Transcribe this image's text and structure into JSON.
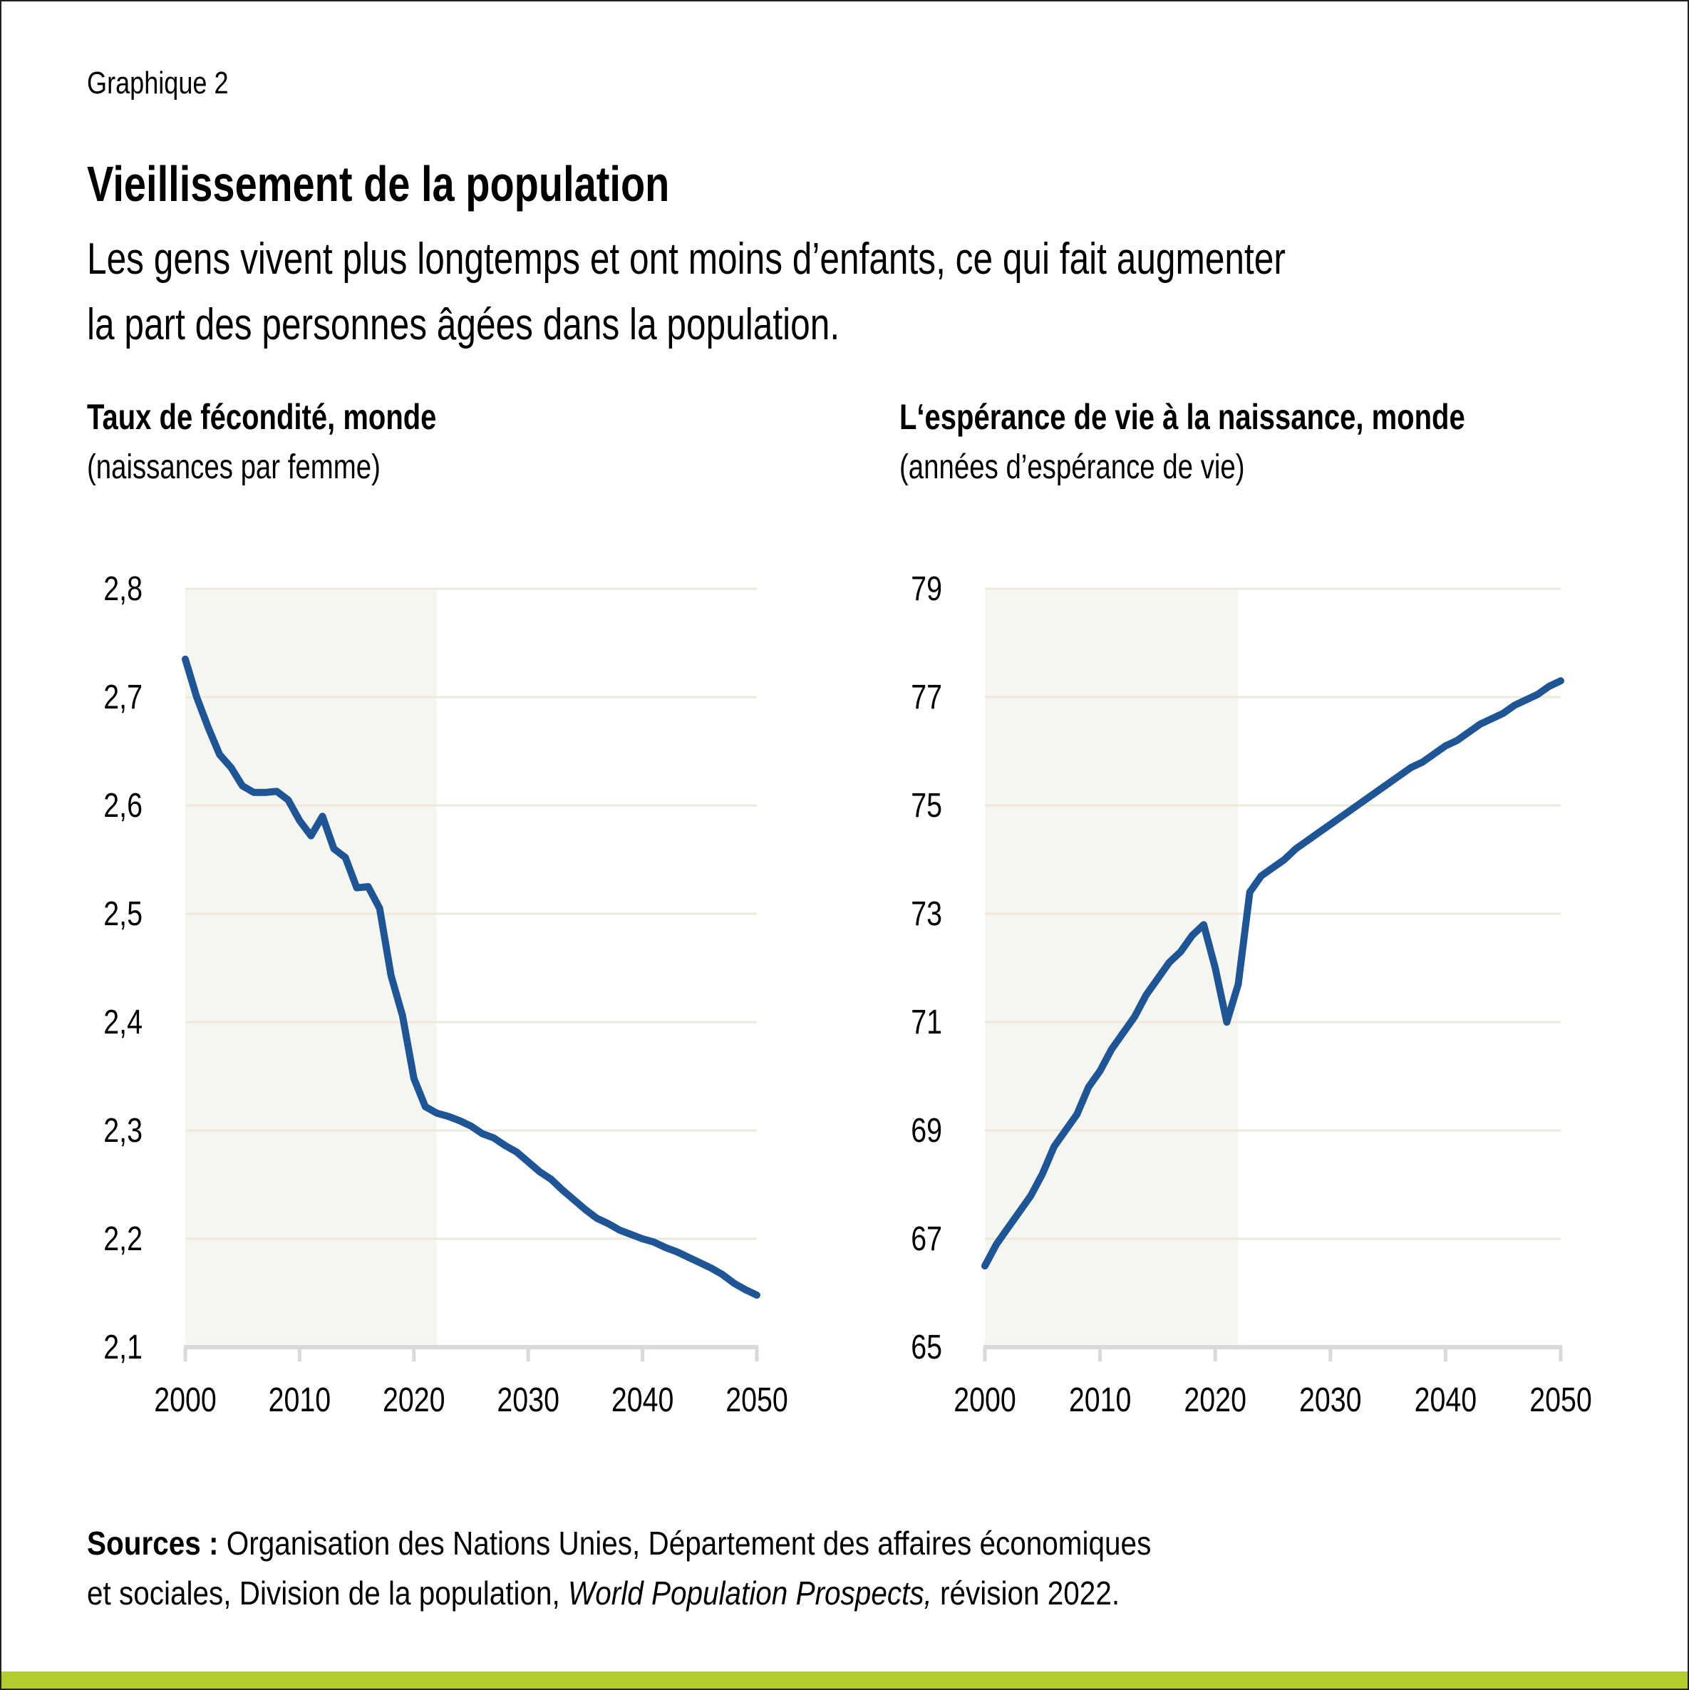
{
  "header": {
    "kicker": "Graphique 2",
    "title": "Vieillissement de la population",
    "subtitle_line1": "Les gens vivent plus longtemps et ont moins d’enfants, ce qui fait augmenter",
    "subtitle_line2": "la part des personnes âgées dans la population."
  },
  "colors": {
    "line": "#1f5594",
    "shade": "#f6f6f1",
    "grid": "#ede9dd",
    "axis": "#d9d9d9",
    "accent_bar": "#b3cd2d"
  },
  "footer": {
    "sources_label": "Sources :",
    "sources_text_1": " Organisation des Nations Unies, Département des affaires économiques",
    "sources_text_2a": "et sociales, Division de la population, ",
    "sources_text_2_italic": "World Population Prospects,",
    "sources_text_2b": " révision 2022."
  },
  "chart_data": [
    {
      "type": "line",
      "title": "Taux de fécondité, monde",
      "ylabel": "(naissances par femme)",
      "xlabel": "",
      "xlim": [
        2000,
        2050
      ],
      "ylim": [
        2.1,
        2.8
      ],
      "x_ticks": [
        "2000",
        "2010",
        "2020",
        "2030",
        "2040",
        "2050"
      ],
      "y_ticks": [
        "2,1",
        "2,2",
        "2,3",
        "2,4",
        "2,5",
        "2,6",
        "2,7",
        "2,8"
      ],
      "y_tick_values": [
        2.1,
        2.2,
        2.3,
        2.4,
        2.5,
        2.6,
        2.7,
        2.8
      ],
      "grid": true,
      "shaded_region": [
        2000,
        2022
      ],
      "series": [
        {
          "name": "Taux de fécondité",
          "x": [
            2000,
            2001,
            2002,
            2003,
            2004,
            2005,
            2006,
            2007,
            2008,
            2009,
            2010,
            2011,
            2012,
            2013,
            2014,
            2015,
            2016,
            2017,
            2018,
            2019,
            2020,
            2021,
            2022,
            2023,
            2024,
            2025,
            2026,
            2027,
            2028,
            2029,
            2030,
            2031,
            2032,
            2033,
            2034,
            2035,
            2036,
            2037,
            2038,
            2039,
            2040,
            2041,
            2042,
            2043,
            2044,
            2045,
            2046,
            2047,
            2048,
            2049,
            2050
          ],
          "values": [
            2.735,
            2.7,
            2.672,
            2.647,
            2.635,
            2.618,
            2.612,
            2.612,
            2.613,
            2.605,
            2.586,
            2.572,
            2.59,
            2.56,
            2.552,
            2.524,
            2.525,
            2.505,
            2.443,
            2.406,
            2.348,
            2.322,
            2.316,
            2.313,
            2.309,
            2.304,
            2.297,
            2.293,
            2.286,
            2.28,
            2.271,
            2.262,
            2.255,
            2.245,
            2.236,
            2.227,
            2.219,
            2.214,
            2.208,
            2.204,
            2.2,
            2.197,
            2.192,
            2.188,
            2.183,
            2.178,
            2.173,
            2.167,
            2.159,
            2.153,
            2.148
          ]
        }
      ]
    },
    {
      "type": "line",
      "title": "L‘espérance de vie à la naissance, monde",
      "ylabel": "(années d’espérance de vie)",
      "xlabel": "",
      "xlim": [
        2000,
        2050
      ],
      "ylim": [
        65,
        79
      ],
      "x_ticks": [
        "2000",
        "2010",
        "2020",
        "2030",
        "2040",
        "2050"
      ],
      "y_ticks": [
        "65",
        "67",
        "69",
        "71",
        "73",
        "75",
        "77",
        "79"
      ],
      "y_tick_values": [
        65,
        67,
        69,
        71,
        73,
        75,
        77,
        79
      ],
      "grid": true,
      "shaded_region": [
        2000,
        2022
      ],
      "series": [
        {
          "name": "Espérance de vie",
          "x": [
            2000,
            2001,
            2002,
            2003,
            2004,
            2005,
            2006,
            2007,
            2008,
            2009,
            2010,
            2011,
            2012,
            2013,
            2014,
            2015,
            2016,
            2017,
            2018,
            2019,
            2020,
            2021,
            2022,
            2023,
            2024,
            2025,
            2026,
            2027,
            2028,
            2029,
            2030,
            2031,
            2032,
            2033,
            2034,
            2035,
            2036,
            2037,
            2038,
            2039,
            2040,
            2041,
            2042,
            2043,
            2044,
            2045,
            2046,
            2047,
            2048,
            2049,
            2050
          ],
          "values": [
            66.5,
            66.9,
            67.2,
            67.5,
            67.8,
            68.2,
            68.7,
            69.0,
            69.3,
            69.8,
            70.1,
            70.5,
            70.8,
            71.1,
            71.5,
            71.8,
            72.1,
            72.3,
            72.6,
            72.8,
            72.0,
            71.0,
            71.7,
            73.4,
            73.7,
            73.85,
            74.0,
            74.2,
            74.35,
            74.5,
            74.65,
            74.8,
            74.95,
            75.1,
            75.25,
            75.4,
            75.55,
            75.7,
            75.8,
            75.95,
            76.1,
            76.2,
            76.35,
            76.5,
            76.6,
            76.7,
            76.85,
            76.95,
            77.05,
            77.2,
            77.3
          ]
        }
      ]
    }
  ]
}
